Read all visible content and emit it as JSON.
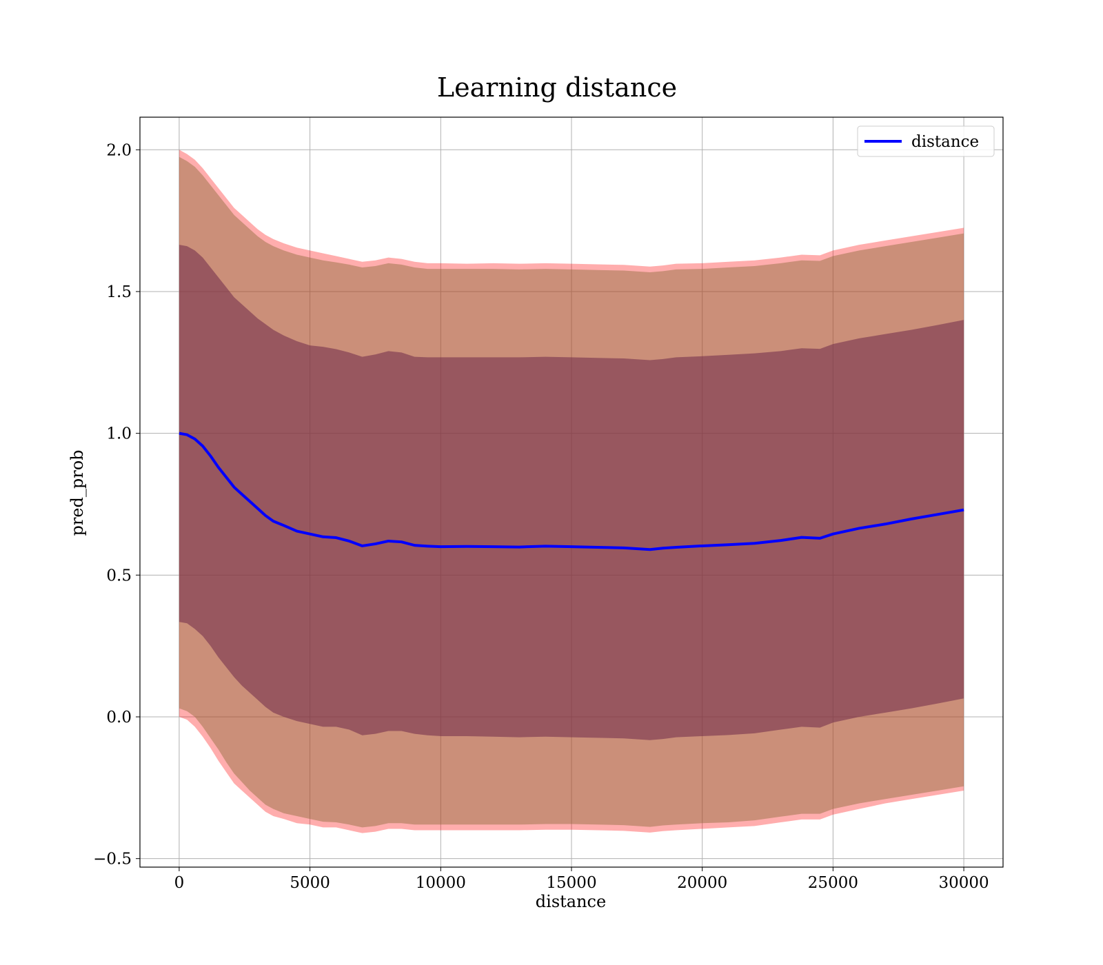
{
  "chart_data": {
    "type": "area",
    "title": "Learning distance",
    "xlabel": "distance",
    "ylabel": "pred_prob",
    "xlim": [
      -1500,
      31500
    ],
    "ylim": [
      -0.53,
      2.115
    ],
    "xticks": [
      0,
      5000,
      10000,
      15000,
      20000,
      25000,
      30000
    ],
    "xtick_labels": [
      "0",
      "5000",
      "10000",
      "15000",
      "20000",
      "25000",
      "30000"
    ],
    "yticks": [
      -0.5,
      0.0,
      0.5,
      1.0,
      1.5,
      2.0
    ],
    "ytick_labels": [
      "−0.5",
      "0.0",
      "0.5",
      "1.0",
      "1.5",
      "2.0"
    ],
    "grid": true,
    "legend": {
      "position": "top-right",
      "entries": [
        "distance"
      ]
    },
    "colors": {
      "line": "#0000ff",
      "outer_band": "#ff0000",
      "middle_band": "#8b6b3a",
      "inner_band": "#6f2a4a"
    },
    "series": [
      {
        "name": "distance",
        "role": "mean",
        "x": [
          0,
          300,
          600,
          900,
          1200,
          1500,
          1800,
          2100,
          2400,
          2700,
          3000,
          3300,
          3600,
          4000,
          4500,
          5000,
          5500,
          6000,
          6500,
          7000,
          7500,
          8000,
          8500,
          9000,
          9500,
          10000,
          11000,
          12000,
          13000,
          14000,
          15000,
          16000,
          17000,
          18000,
          18500,
          19000,
          20000,
          21000,
          22000,
          23000,
          23800,
          24500,
          25000,
          26000,
          27000,
          28000,
          29000,
          30000
        ],
        "y": [
          1.0,
          0.995,
          0.98,
          0.955,
          0.92,
          0.88,
          0.845,
          0.81,
          0.785,
          0.76,
          0.735,
          0.71,
          0.69,
          0.675,
          0.655,
          0.645,
          0.635,
          0.632,
          0.62,
          0.603,
          0.61,
          0.62,
          0.617,
          0.605,
          0.602,
          0.6,
          0.601,
          0.6,
          0.599,
          0.602,
          0.6,
          0.598,
          0.596,
          0.59,
          0.595,
          0.598,
          0.603,
          0.607,
          0.612,
          0.622,
          0.633,
          0.63,
          0.645,
          0.665,
          0.68,
          0.698,
          0.714,
          0.73
        ]
      },
      {
        "name": "",
        "role": "outer band (±2σ)",
        "x": [
          0,
          300,
          600,
          900,
          1200,
          1500,
          1800,
          2100,
          2400,
          2700,
          3000,
          3300,
          3600,
          4000,
          4500,
          5000,
          5500,
          6000,
          6500,
          7000,
          7500,
          8000,
          8500,
          9000,
          9500,
          10000,
          11000,
          12000,
          13000,
          14000,
          15000,
          16000,
          17000,
          18000,
          18500,
          19000,
          20000,
          21000,
          22000,
          23000,
          23800,
          24500,
          25000,
          26000,
          27000,
          28000,
          29000,
          30000
        ],
        "lower": [
          0.0,
          -0.01,
          -0.035,
          -0.07,
          -0.11,
          -0.155,
          -0.195,
          -0.235,
          -0.26,
          -0.285,
          -0.31,
          -0.335,
          -0.35,
          -0.36,
          -0.375,
          -0.38,
          -0.39,
          -0.39,
          -0.4,
          -0.41,
          -0.405,
          -0.395,
          -0.395,
          -0.4,
          -0.4,
          -0.4,
          -0.4,
          -0.4,
          -0.4,
          -0.398,
          -0.398,
          -0.4,
          -0.402,
          -0.408,
          -0.403,
          -0.4,
          -0.395,
          -0.39,
          -0.385,
          -0.372,
          -0.362,
          -0.362,
          -0.345,
          -0.325,
          -0.305,
          -0.29,
          -0.275,
          -0.26
        ],
        "upper": [
          2.0,
          1.985,
          1.965,
          1.935,
          1.9,
          1.865,
          1.83,
          1.795,
          1.77,
          1.745,
          1.72,
          1.7,
          1.685,
          1.67,
          1.655,
          1.645,
          1.635,
          1.625,
          1.615,
          1.605,
          1.61,
          1.62,
          1.615,
          1.605,
          1.6,
          1.6,
          1.598,
          1.6,
          1.598,
          1.6,
          1.598,
          1.596,
          1.594,
          1.588,
          1.592,
          1.598,
          1.6,
          1.605,
          1.61,
          1.62,
          1.63,
          1.628,
          1.645,
          1.665,
          1.68,
          1.695,
          1.71,
          1.725
        ]
      },
      {
        "name": "",
        "role": "middle band",
        "x": [
          0,
          300,
          600,
          900,
          1200,
          1500,
          1800,
          2100,
          2400,
          2700,
          3000,
          3300,
          3600,
          4000,
          4500,
          5000,
          5500,
          6000,
          6500,
          7000,
          7500,
          8000,
          8500,
          9000,
          9500,
          10000,
          11000,
          12000,
          13000,
          14000,
          15000,
          16000,
          17000,
          18000,
          18500,
          19000,
          20000,
          21000,
          22000,
          23000,
          23800,
          24500,
          25000,
          26000,
          27000,
          28000,
          29000,
          30000
        ],
        "lower": [
          0.03,
          0.02,
          0.0,
          -0.035,
          -0.075,
          -0.115,
          -0.16,
          -0.2,
          -0.23,
          -0.26,
          -0.285,
          -0.31,
          -0.325,
          -0.34,
          -0.35,
          -0.36,
          -0.37,
          -0.372,
          -0.38,
          -0.39,
          -0.385,
          -0.375,
          -0.375,
          -0.38,
          -0.38,
          -0.38,
          -0.38,
          -0.38,
          -0.38,
          -0.378,
          -0.378,
          -0.38,
          -0.382,
          -0.388,
          -0.383,
          -0.38,
          -0.375,
          -0.372,
          -0.365,
          -0.352,
          -0.342,
          -0.342,
          -0.325,
          -0.305,
          -0.29,
          -0.275,
          -0.26,
          -0.245
        ],
        "upper": [
          1.975,
          1.96,
          1.94,
          1.91,
          1.875,
          1.84,
          1.805,
          1.77,
          1.745,
          1.72,
          1.695,
          1.675,
          1.66,
          1.645,
          1.63,
          1.62,
          1.61,
          1.603,
          1.595,
          1.585,
          1.59,
          1.6,
          1.595,
          1.585,
          1.58,
          1.58,
          1.58,
          1.58,
          1.578,
          1.58,
          1.578,
          1.576,
          1.574,
          1.568,
          1.572,
          1.578,
          1.58,
          1.585,
          1.59,
          1.6,
          1.61,
          1.608,
          1.625,
          1.645,
          1.66,
          1.675,
          1.69,
          1.705
        ]
      },
      {
        "name": "",
        "role": "inner band (±1σ)",
        "x": [
          0,
          300,
          600,
          900,
          1200,
          1500,
          1800,
          2100,
          2400,
          2700,
          3000,
          3300,
          3600,
          4000,
          4500,
          5000,
          5500,
          6000,
          6500,
          7000,
          7500,
          8000,
          8500,
          9000,
          9500,
          10000,
          11000,
          12000,
          13000,
          14000,
          15000,
          16000,
          17000,
          18000,
          18500,
          19000,
          20000,
          21000,
          22000,
          23000,
          23800,
          24500,
          25000,
          26000,
          27000,
          28000,
          29000,
          30000
        ],
        "lower": [
          0.335,
          0.33,
          0.31,
          0.285,
          0.25,
          0.21,
          0.175,
          0.14,
          0.11,
          0.085,
          0.06,
          0.035,
          0.015,
          0.0,
          -0.015,
          -0.025,
          -0.035,
          -0.035,
          -0.045,
          -0.065,
          -0.06,
          -0.05,
          -0.05,
          -0.06,
          -0.065,
          -0.068,
          -0.068,
          -0.07,
          -0.072,
          -0.07,
          -0.072,
          -0.074,
          -0.076,
          -0.082,
          -0.078,
          -0.072,
          -0.068,
          -0.064,
          -0.058,
          -0.045,
          -0.035,
          -0.038,
          -0.02,
          0.0,
          0.015,
          0.03,
          0.047,
          0.065
        ],
        "upper": [
          1.665,
          1.66,
          1.645,
          1.62,
          1.585,
          1.55,
          1.515,
          1.48,
          1.455,
          1.43,
          1.405,
          1.385,
          1.365,
          1.345,
          1.325,
          1.31,
          1.305,
          1.297,
          1.285,
          1.27,
          1.278,
          1.29,
          1.285,
          1.27,
          1.268,
          1.268,
          1.268,
          1.268,
          1.268,
          1.27,
          1.268,
          1.266,
          1.264,
          1.258,
          1.262,
          1.268,
          1.272,
          1.277,
          1.282,
          1.29,
          1.3,
          1.298,
          1.315,
          1.335,
          1.35,
          1.365,
          1.382,
          1.4
        ]
      }
    ]
  }
}
